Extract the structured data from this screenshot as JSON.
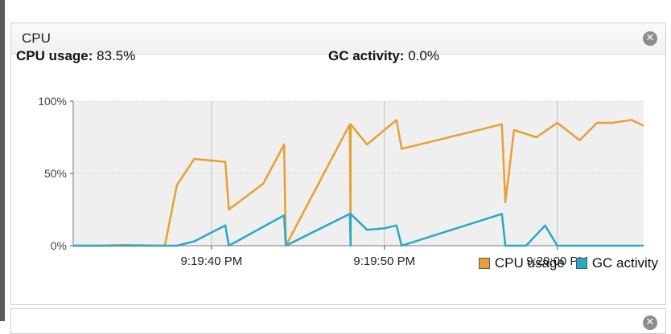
{
  "panel": {
    "title": "CPU",
    "close_icon": "close-circle-icon"
  },
  "stats": {
    "cpu_label": "CPU usage:",
    "cpu_value": "83.5%",
    "gc_label": "GC activity:",
    "gc_value": "0.0%"
  },
  "colors": {
    "cpu": "#e8a032",
    "gc": "#2aa8c8",
    "plot_bg": "#efefef",
    "grid": "#cfcfcf"
  },
  "chart_data": {
    "type": "line",
    "ylim": [
      0,
      100
    ],
    "y_ticks": [
      {
        "value": 0,
        "label": "0%"
      },
      {
        "value": 50,
        "label": "50%"
      },
      {
        "value": 100,
        "label": "100%"
      }
    ],
    "xlim": [
      0,
      33
    ],
    "x_ticks": [
      {
        "value": 8,
        "label": "9:19:40 PM"
      },
      {
        "value": 18,
        "label": "9:19:50 PM"
      },
      {
        "value": 28,
        "label": "9:20:00 PM"
      }
    ],
    "series": [
      {
        "name": "CPU usage",
        "color": "#e8a032",
        "points": [
          [
            0,
            0
          ],
          [
            1.5,
            0
          ],
          [
            3,
            0.5
          ],
          [
            5.3,
            0
          ],
          [
            6,
            42
          ],
          [
            7,
            60
          ],
          [
            8.8,
            58
          ],
          [
            9,
            25
          ],
          [
            11,
            43
          ],
          [
            12.2,
            70
          ],
          [
            12.3,
            0
          ],
          [
            16,
            84
          ],
          [
            16.05,
            0
          ],
          [
            16.05,
            84
          ],
          [
            17,
            70
          ],
          [
            18.7,
            87
          ],
          [
            19,
            67
          ],
          [
            24.8,
            84
          ],
          [
            25,
            30
          ],
          [
            25.5,
            80
          ],
          [
            26.8,
            75
          ],
          [
            28,
            85
          ],
          [
            29.3,
            73
          ],
          [
            30.3,
            85
          ],
          [
            31.2,
            85
          ],
          [
            32.3,
            87
          ],
          [
            33,
            83
          ]
        ]
      },
      {
        "name": "GC activity",
        "color": "#2aa8c8",
        "points": [
          [
            0,
            0
          ],
          [
            6,
            0
          ],
          [
            7,
            3
          ],
          [
            8.8,
            14
          ],
          [
            9,
            0
          ],
          [
            12.2,
            21
          ],
          [
            12.3,
            0
          ],
          [
            16,
            22
          ],
          [
            16.05,
            0
          ],
          [
            16.05,
            22
          ],
          [
            17,
            11
          ],
          [
            18,
            12
          ],
          [
            18.7,
            14
          ],
          [
            19,
            0
          ],
          [
            24.8,
            22
          ],
          [
            25,
            0
          ],
          [
            26.2,
            0
          ],
          [
            27.3,
            14
          ],
          [
            28,
            0
          ],
          [
            33,
            0
          ]
        ]
      }
    ],
    "legend_position": "bottom-right"
  },
  "legend": {
    "cpu": "CPU usage",
    "gc": "GC activity"
  }
}
